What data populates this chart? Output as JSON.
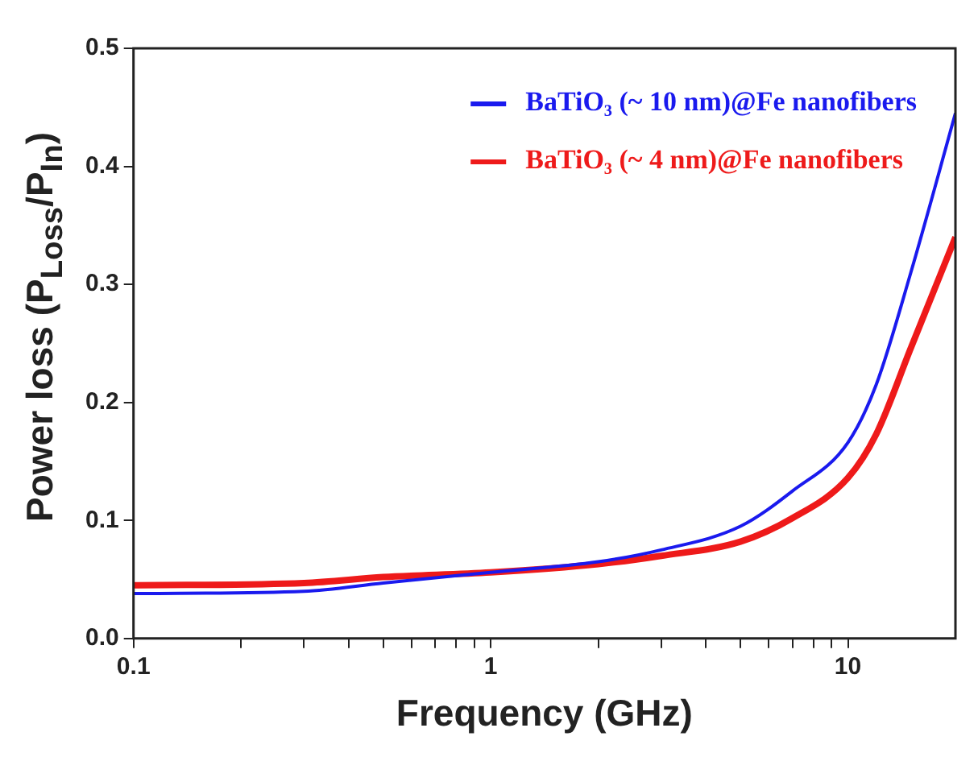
{
  "chart_data": {
    "type": "line",
    "xlabel": "Frequency (GHz)",
    "ylabel": "Power loss (P$_{Loss}$/P$_{In}$)",
    "log": "x",
    "xlim": [
      0.1,
      20
    ],
    "ylim": [
      0,
      0.5
    ],
    "xticks": [
      0.1,
      {
        "value": 0.2,
        "label": null
      },
      {
        "value": 0.3,
        "label": null
      },
      {
        "value": 0.4,
        "label": null
      },
      {
        "value": 0.5,
        "label": null
      },
      {
        "value": 0.6,
        "label": null
      },
      {
        "value": 0.7,
        "label": null
      },
      {
        "value": 0.8,
        "label": null
      },
      {
        "value": 0.9,
        "label": null
      },
      1,
      {
        "value": 2,
        "label": null
      },
      {
        "value": 3,
        "label": null
      },
      {
        "value": 4,
        "label": null
      },
      {
        "value": 5,
        "label": null
      },
      {
        "value": 6,
        "label": null
      },
      {
        "value": 7,
        "label": null
      },
      {
        "value": 8,
        "label": null
      },
      {
        "value": 9,
        "label": null
      },
      10
    ],
    "yticks": [
      {
        "value": 0,
        "label": "0.0"
      },
      0.1,
      0.2,
      0.3,
      0.4,
      0.5
    ],
    "x": [
      0.1,
      0.3,
      0.5,
      1,
      2,
      3,
      5,
      7,
      10,
      12,
      15,
      20
    ],
    "series": [
      {
        "name": "BaTiO₃ (~ 10 nm)@Fe nanofibers",
        "color": "#1a1aee",
        "values": [
          0.038,
          0.04,
          0.047,
          0.056,
          0.065,
          0.075,
          0.095,
          0.125,
          0.166,
          0.215,
          0.31,
          0.445
        ]
      },
      {
        "name": "BaTiO₃ (~ 4 nm)@Fe nanofibers",
        "color": "#ee1a1a",
        "values": [
          0.045,
          0.047,
          0.052,
          0.056,
          0.063,
          0.07,
          0.082,
          0.102,
          0.136,
          0.173,
          0.246,
          0.34
        ]
      }
    ],
    "legend": "top right",
    "grid": false,
    "marker": "none",
    "line_style": "solid"
  }
}
